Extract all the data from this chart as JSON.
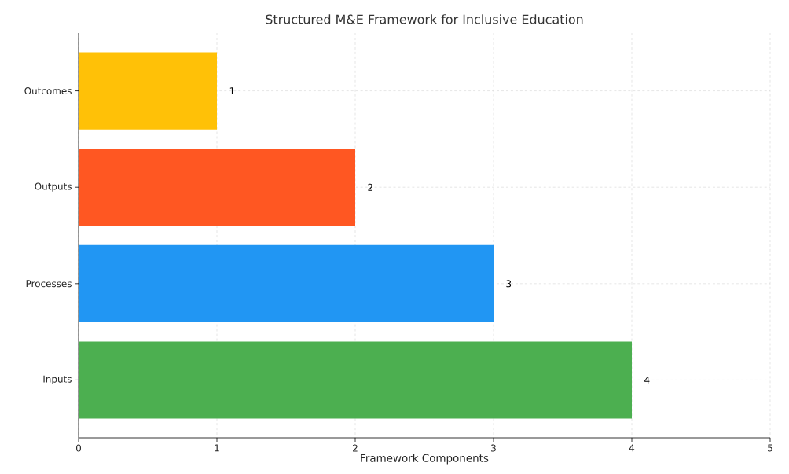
{
  "chart_data": {
    "type": "bar",
    "orientation": "horizontal",
    "title": "Structured M&E Framework for Inclusive Education",
    "xlabel": "Framework Components",
    "categories": [
      "Outcomes",
      "Outputs",
      "Processes",
      "Inputs"
    ],
    "values": [
      1,
      2,
      3,
      4
    ],
    "colors": [
      "#ffc107",
      "#ff5722",
      "#2196f3",
      "#4caf50"
    ],
    "xlim": [
      0,
      5
    ],
    "xticks": [
      0,
      1,
      2,
      3,
      4,
      5
    ],
    "grid": true,
    "data_labels": true
  }
}
